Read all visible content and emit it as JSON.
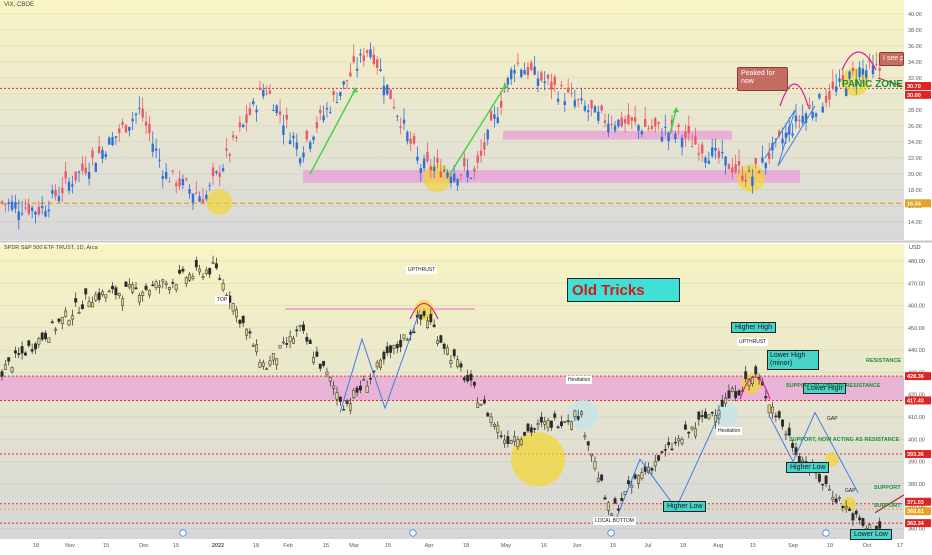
{
  "colors": {
    "up": "#2f6fd6",
    "down": "#e85a68",
    "spy_up": "#e3d68a",
    "spy_down": "#2b2b2b",
    "pink_zone": "#e9a3d8",
    "red_dotted": "#e03030",
    "orange_dashed": "#e7a321",
    "highlight": "#f3d52b",
    "teal_box": "#46d3c8",
    "green_arrow": "#38d44a",
    "blue_line": "#3d7ee6",
    "magenta_arc": "#d6229a",
    "bg_top": "#f7f3c8",
    "bg_bottom": "#d7d7d9"
  },
  "panel1": {
    "symbol": "VIX, CBOE",
    "axis_ticks": [
      "40.00",
      "38.00",
      "36.00",
      "34.00",
      "32.00",
      "30.00",
      "28.00",
      "26.00",
      "24.00",
      "22.00",
      "20.00",
      "18.00",
      "16.00",
      "14.00"
    ],
    "price_tags": [
      {
        "text": "30.70",
        "color": "red"
      },
      {
        "text": "30.00",
        "color": "red"
      },
      {
        "text": "16.34",
        "color": "orange"
      }
    ],
    "annotations": {
      "peaked": "Peaked for now",
      "panic": "PANIC ZONE",
      "isee": "I see pa"
    }
  },
  "panel2": {
    "symbol": "SPDR S&P 500 ETF TRUST, 1D, Arca",
    "currency": "USD",
    "axis_ticks": [
      "480.00",
      "470.00",
      "460.00",
      "450.00",
      "440.00",
      "430.00",
      "420.00",
      "410.00",
      "400.00",
      "390.00",
      "380.00",
      "370.00",
      "360.00"
    ],
    "price_tags": [
      {
        "text": "428.36",
        "color": "red"
      },
      {
        "text": "417.43",
        "color": "red"
      },
      {
        "text": "393.36",
        "color": "red"
      },
      {
        "text": "371.03",
        "color": "red"
      },
      {
        "text": "368.61",
        "color": "orange"
      },
      {
        "text": "362.34",
        "color": "red"
      }
    ],
    "title": "Old Tricks",
    "annotations": {
      "top": "TOP",
      "upthrust1": "UPTHRUST",
      "upthrust2": "UPTHRUST",
      "hesitation1": "Hesitation",
      "hesitation2": "Hesitation",
      "local_bottom": "LOCAL BOTTOM",
      "higher_low1": "Higher Low",
      "higher_low2": "Higher Low",
      "higher_high": "Higher High",
      "lower_high_minor": "Lower High (minor)",
      "lower_high": "Lower High",
      "lower_low": "Lower Low",
      "resistance": "RESISTANCE",
      "support_res": "SUPPORT ACTING AS RESISTANCE",
      "support_now": "SUPPORT, NOW ACTING AS RESISTANCE",
      "support1": "SUPPORT",
      "support2": "SUPPORT",
      "gap1": "GAP",
      "gap2": "GAP"
    }
  },
  "time_axis": [
    "18",
    "Nov",
    "15",
    "Dec",
    "15",
    "2022",
    "18",
    "Feb",
    "15",
    "Mar",
    "15",
    "Apr",
    "18",
    "May",
    "16",
    "Jun",
    "15",
    "Jul",
    "18",
    "Aug",
    "15",
    "Sep",
    "19",
    "Oct",
    "17"
  ],
  "chart_data": [
    {
      "type": "candlestick",
      "series": "VIX, CBOE",
      "ylim": [
        13,
        41
      ],
      "x_period": [
        "Oct 2021",
        "Oct 2022"
      ],
      "approx_close_path": [
        {
          "period": "Oct 2021",
          "value": 16.5
        },
        {
          "period": "early Nov 2021",
          "value": 15.5
        },
        {
          "period": "late Nov 2021",
          "value": 22
        },
        {
          "period": "Dec 2021",
          "value": 28
        },
        {
          "period": "mid Dec 2021",
          "value": 20
        },
        {
          "period": "early Jan 2022",
          "value": 17
        },
        {
          "period": "late Jan 2022",
          "value": 31
        },
        {
          "period": "Feb 2022",
          "value": 23
        },
        {
          "period": "early Mar 2022",
          "value": 36
        },
        {
          "period": "late Mar 2022",
          "value": 21
        },
        {
          "period": "Apr 2022",
          "value": 20
        },
        {
          "period": "May 2022",
          "value": 34
        },
        {
          "period": "Jun 2022",
          "value": 27
        },
        {
          "period": "Jul 2022",
          "value": 25
        },
        {
          "period": "Aug 2022",
          "value": 19.5
        },
        {
          "period": "Sep 2022",
          "value": 27
        },
        {
          "period": "Oct 2022",
          "value": 33
        }
      ],
      "reference_lines": {
        "red_dotted": 30.7,
        "orange_dashed": 16.34
      },
      "zones": [
        {
          "from": 18.9,
          "to": 20.5
        },
        {
          "from": 24.3,
          "to": 25.4
        }
      ]
    },
    {
      "type": "candlestick",
      "series": "SPDR S&P 500 ETF TRUST, 1D, Arca",
      "ylim": [
        357,
        485
      ],
      "x_period": [
        "Oct 2021",
        "Oct 2022"
      ],
      "approx_close_path": [
        {
          "period": "Oct 2021",
          "value": 430
        },
        {
          "period": "Nov 2021",
          "value": 464
        },
        {
          "period": "Dec 2021",
          "value": 468
        },
        {
          "period": "early Jan 2022",
          "value": 477
        },
        {
          "period": "late Jan 2022",
          "value": 432
        },
        {
          "period": "Feb 2022",
          "value": 449
        },
        {
          "period": "early Mar 2022",
          "value": 415
        },
        {
          "period": "early Apr 2022",
          "value": 456
        },
        {
          "period": "May 2022",
          "value": 400
        },
        {
          "period": "early Jun 2022",
          "value": 412
        },
        {
          "period": "mid Jun 2022",
          "value": 366
        },
        {
          "period": "early Jul 2022",
          "value": 384
        },
        {
          "period": "mid Aug 2022",
          "value": 429
        },
        {
          "period": "Sep 2022",
          "value": 392
        },
        {
          "period": "Oct 2022",
          "value": 360
        }
      ],
      "reference_lines": {
        "red_dotted": [
          428.36,
          417.43,
          393.36,
          371.03,
          362.34
        ],
        "orange": 368.61
      },
      "zones": [
        {
          "from": 417.43,
          "to": 428.36
        }
      ]
    }
  ]
}
